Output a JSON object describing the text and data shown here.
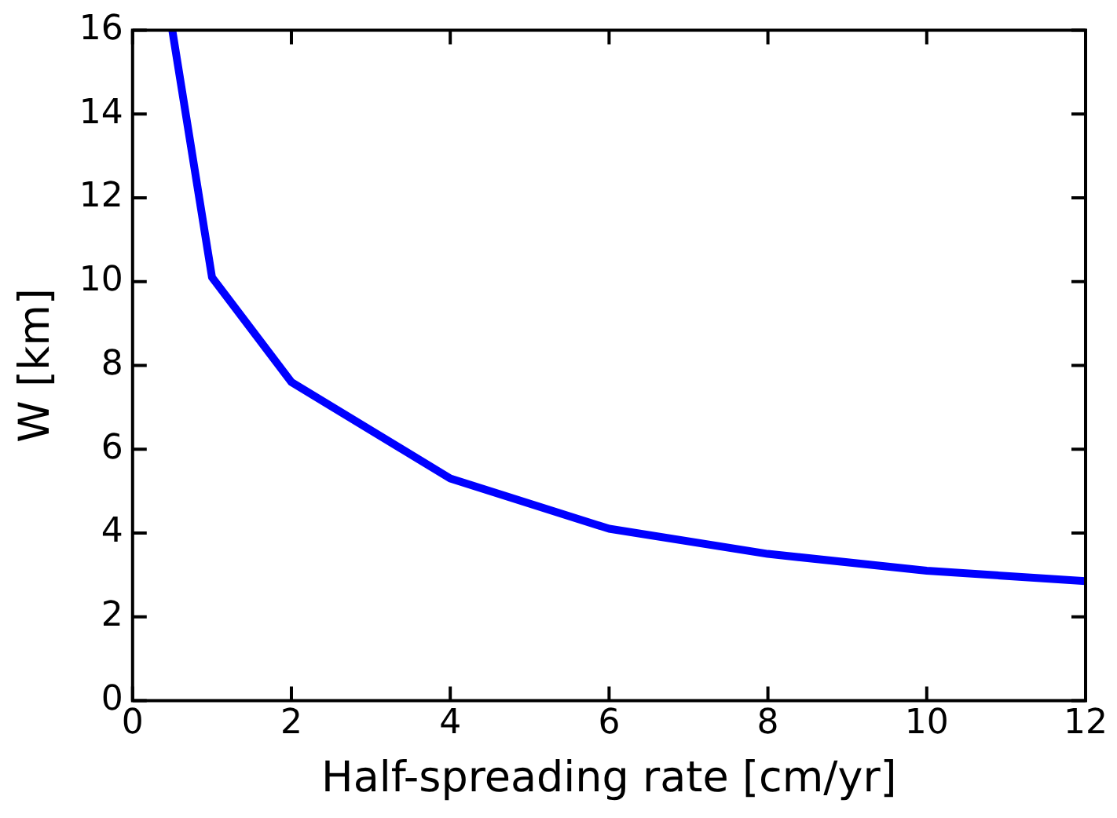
{
  "chart_data": {
    "type": "line",
    "xlabel": "Half-spreading rate [cm/yr]",
    "ylabel": "W [km]",
    "x": [
      0.5,
      1,
      2,
      4,
      6,
      8,
      10,
      12
    ],
    "series": [
      {
        "color": "#0000ff",
        "values": [
          16,
          10.1,
          7.6,
          5.3,
          4.1,
          3.5,
          3.1,
          2.85
        ]
      }
    ],
    "xlim": [
      0,
      12
    ],
    "xticks": [
      0,
      2,
      4,
      6,
      8,
      10,
      12
    ],
    "ylim": [
      0,
      16
    ],
    "yticks": [
      0,
      2,
      4,
      6,
      8,
      10,
      12,
      14,
      16
    ],
    "grid": false,
    "legend": false,
    "marker": "none",
    "line_style": "solid"
  }
}
